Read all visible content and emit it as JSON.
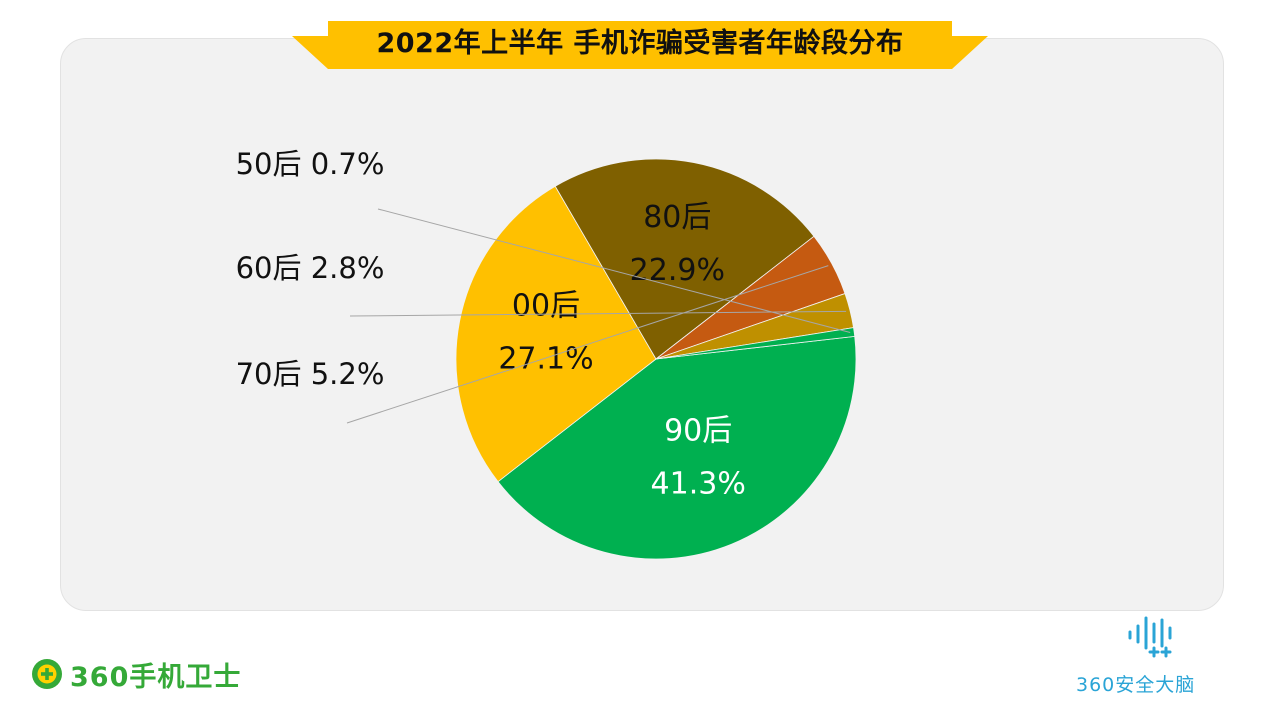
{
  "chart_data": {
    "type": "pie",
    "title": "2022年上半年 手机诈骗受害者年龄段分布",
    "slices": [
      {
        "name": "90后",
        "value": 41.3,
        "label": "41.3%",
        "color": "#00b050",
        "label_color": "#ffffff",
        "label_position": "inside"
      },
      {
        "name": "00后",
        "value": 27.1,
        "label": "27.1%",
        "color": "#ffc000",
        "label_color": "#111111",
        "label_position": "inside"
      },
      {
        "name": "80后",
        "value": 22.9,
        "label": "22.9%",
        "color": "#7f6000",
        "label_color": "#111111",
        "label_position": "inside"
      },
      {
        "name": "70后",
        "value": 5.2,
        "label": "5.2%",
        "color": "#c55a11",
        "label_color": "#111111",
        "label_position": "outside"
      },
      {
        "name": "60后",
        "value": 2.8,
        "label": "2.8%",
        "color": "#bf9000",
        "label_color": "#111111",
        "label_position": "outside"
      },
      {
        "name": "50后",
        "value": 0.7,
        "label": "0.7%",
        "color": "#00b050",
        "label_color": "#111111",
        "label_position": "outside"
      }
    ]
  },
  "title_banner_color": "#ffc000",
  "logos": {
    "left": {
      "text": "360手机卫士",
      "color": "#35a938",
      "icon": "plus-circle-icon"
    },
    "right": {
      "text": "360安全大脑",
      "color": "#2aa4d6",
      "icon": "waveform-icon"
    }
  }
}
